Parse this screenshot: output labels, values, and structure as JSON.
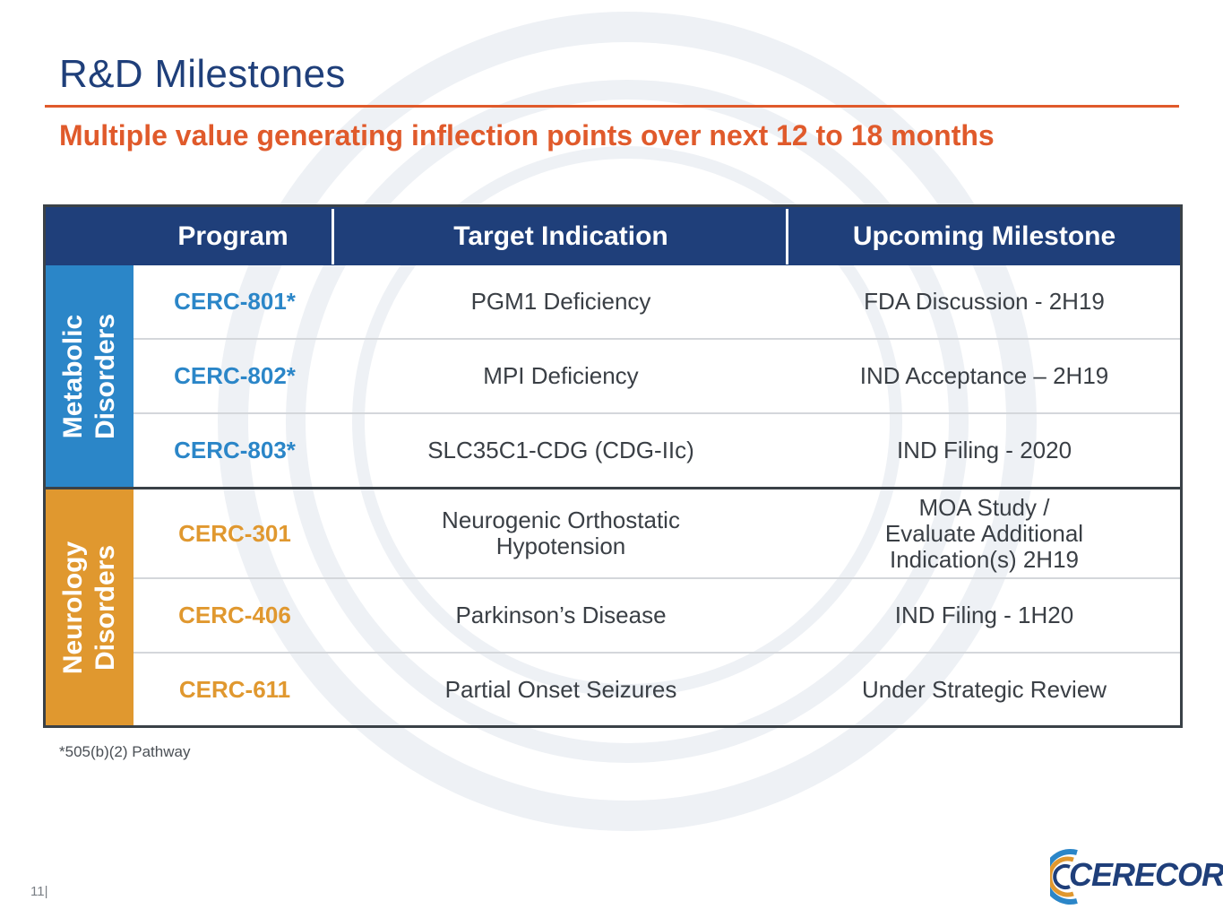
{
  "title": "R&D Milestones",
  "subtitle": "Multiple value generating inflection points over next 12 to 18 months",
  "table": {
    "headers": {
      "program": "Program",
      "indication": "Target Indication",
      "milestone": "Upcoming Milestone"
    },
    "groups": [
      {
        "label_line1": "Metabolic",
        "label_line2": "Disorders",
        "color": "#2b86c8",
        "rows": [
          {
            "program": "CERC-801*",
            "indication": "PGM1 Deficiency",
            "milestone": "FDA Discussion - 2H19"
          },
          {
            "program": "CERC-802*",
            "indication": "MPI Deficiency",
            "milestone": "IND Acceptance – 2H19"
          },
          {
            "program": "CERC-803*",
            "indication": "SLC35C1-CDG (CDG-IIc)",
            "milestone": "IND Filing - 2020"
          }
        ]
      },
      {
        "label_line1": "Neurology",
        "label_line2": "Disorders",
        "color": "#e0982f",
        "rows": [
          {
            "program": "CERC-301",
            "indication_line1": "Neurogenic Orthostatic",
            "indication_line2": "Hypotension",
            "milestone_line1": "MOA Study /",
            "milestone_line2": "Evaluate Additional",
            "milestone_line3": "Indication(s) 2H19"
          },
          {
            "program": "CERC-406",
            "indication": "Parkinson’s Disease",
            "milestone": "IND Filing - 1H20"
          },
          {
            "program": "CERC-611",
            "indication": "Partial Onset Seizures",
            "milestone": "Under Strategic Review"
          }
        ]
      }
    ]
  },
  "footnote": "*505(b)(2) Pathway",
  "page_number": "11|",
  "logo_text": "CERECOR",
  "colors": {
    "navy": "#1f3f7a",
    "accent_orange": "#e05a2b",
    "metabolic_blue": "#2b86c8",
    "neuro_orange": "#e0982f"
  }
}
